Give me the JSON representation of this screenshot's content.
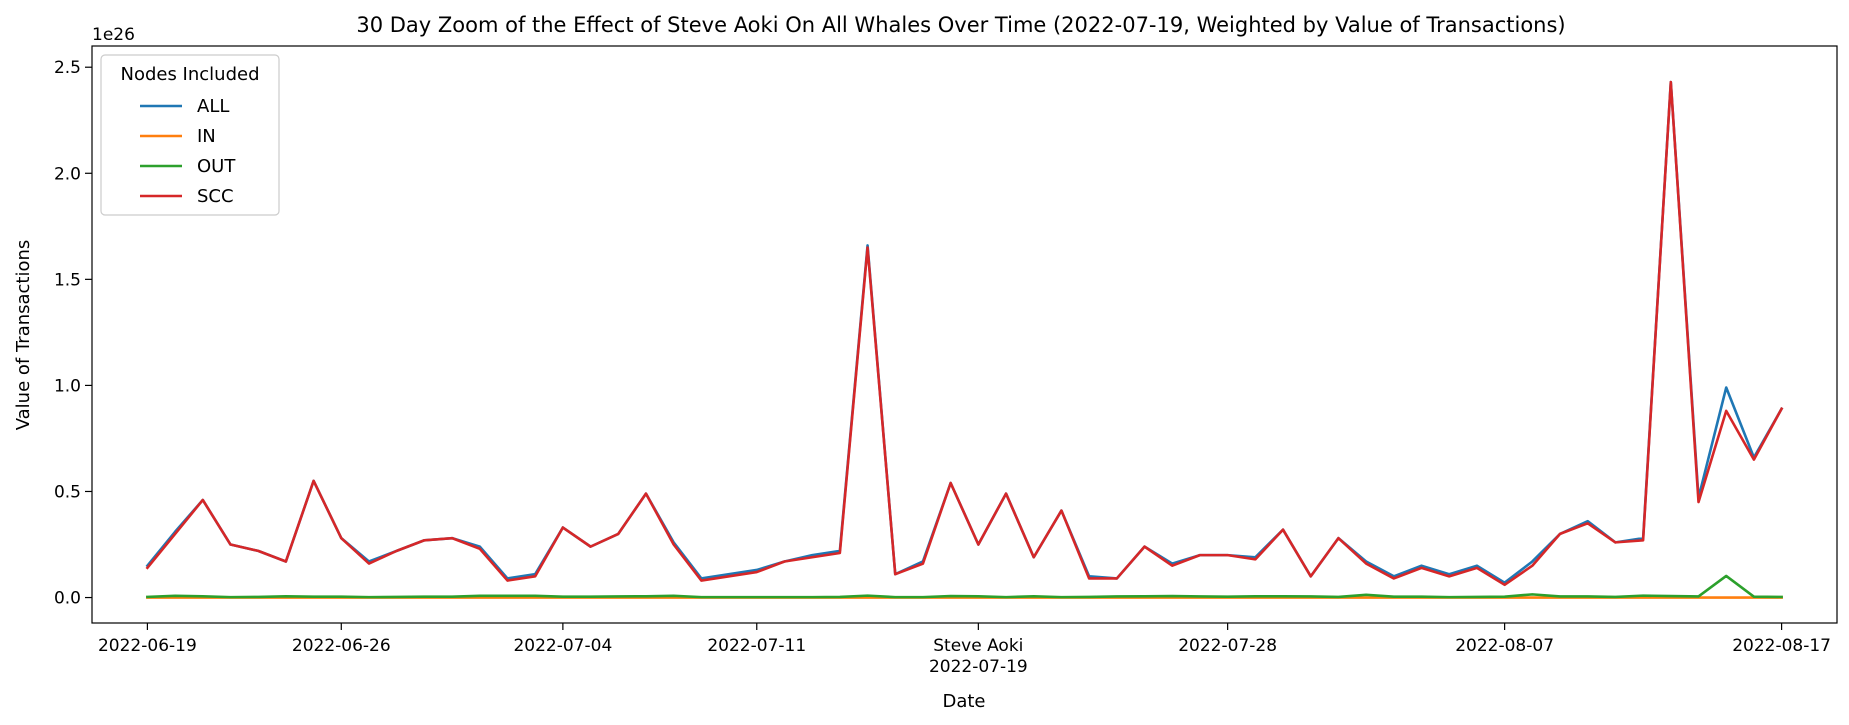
{
  "chart_data": {
    "type": "line",
    "title": "30 Day Zoom of the Effect of Steve Aoki On All Whales Over Time (2022-07-19, Weighted by Value of Transactions)",
    "xlabel": "Date",
    "ylabel": "Value of Transactions",
    "y_multiplier_label": "1e26",
    "ylim": [
      -0.12,
      2.6
    ],
    "xlim": [
      "2022-06-17",
      "2022-08-19"
    ],
    "grid": false,
    "legend": {
      "title": "Nodes Included",
      "placement": "upper-left"
    },
    "x_ticks": [
      {
        "date": "2022-06-19",
        "label": "2022-06-19"
      },
      {
        "date": "2022-06-26",
        "label": "2022-06-26"
      },
      {
        "date": "2022-07-04",
        "label": "2022-07-04"
      },
      {
        "date": "2022-07-11",
        "label": "2022-07-11"
      },
      {
        "date": "2022-07-19",
        "label": "Steve Aoki",
        "label2": "2022-07-19"
      },
      {
        "date": "2022-07-28",
        "label": "2022-07-28"
      },
      {
        "date": "2022-08-07",
        "label": "2022-08-07"
      },
      {
        "date": "2022-08-17",
        "label": "2022-08-17"
      }
    ],
    "y_ticks": [
      0.0,
      0.5,
      1.0,
      1.5,
      2.0,
      2.5
    ],
    "y_tick_labels": [
      "0.0",
      "0.5",
      "1.0",
      "1.5",
      "2.0",
      "2.5"
    ],
    "x": [
      "2022-06-19",
      "2022-06-20",
      "2022-06-21",
      "2022-06-22",
      "2022-06-23",
      "2022-06-24",
      "2022-06-25",
      "2022-06-26",
      "2022-06-27",
      "2022-06-28",
      "2022-06-29",
      "2022-06-30",
      "2022-07-01",
      "2022-07-02",
      "2022-07-03",
      "2022-07-04",
      "2022-07-05",
      "2022-07-06",
      "2022-07-07",
      "2022-07-08",
      "2022-07-09",
      "2022-07-10",
      "2022-07-11",
      "2022-07-12",
      "2022-07-13",
      "2022-07-14",
      "2022-07-15",
      "2022-07-16",
      "2022-07-17",
      "2022-07-18",
      "2022-07-19",
      "2022-07-20",
      "2022-07-21",
      "2022-07-22",
      "2022-07-23",
      "2022-07-24",
      "2022-07-25",
      "2022-07-26",
      "2022-07-27",
      "2022-07-28",
      "2022-07-29",
      "2022-07-30",
      "2022-07-31",
      "2022-08-01",
      "2022-08-02",
      "2022-08-03",
      "2022-08-04",
      "2022-08-05",
      "2022-08-06",
      "2022-08-07",
      "2022-08-08",
      "2022-08-09",
      "2022-08-10",
      "2022-08-11",
      "2022-08-12",
      "2022-08-13",
      "2022-08-14",
      "2022-08-15",
      "2022-08-16",
      "2022-08-17"
    ],
    "series": [
      {
        "name": "ALL",
        "color": "#1f77b4",
        "values": [
          0.15,
          0.31,
          0.46,
          0.25,
          0.22,
          0.17,
          0.55,
          0.28,
          0.17,
          0.22,
          0.27,
          0.28,
          0.24,
          0.09,
          0.11,
          0.33,
          0.24,
          0.3,
          0.49,
          0.26,
          0.09,
          0.11,
          0.13,
          0.17,
          0.2,
          0.22,
          1.66,
          0.11,
          0.17,
          0.54,
          0.25,
          0.49,
          0.19,
          0.41,
          0.1,
          0.09,
          0.24,
          0.16,
          0.2,
          0.2,
          0.19,
          0.32,
          0.1,
          0.28,
          0.17,
          0.1,
          0.15,
          0.11,
          0.15,
          0.07,
          0.17,
          0.3,
          0.36,
          0.26,
          0.28,
          2.43,
          0.47,
          0.99,
          0.66,
          0.89
        ]
      },
      {
        "name": "IN",
        "color": "#ff7f0e",
        "values": [
          0.0,
          0.0,
          0.0,
          0.0,
          0.0,
          0.0,
          0.0,
          0.0,
          0.0,
          0.0,
          0.0,
          0.0,
          0.0,
          0.0,
          0.0,
          0.0,
          0.0,
          0.0,
          0.0,
          0.0,
          0.0,
          0.0,
          0.0,
          0.0,
          0.0,
          0.0,
          0.0,
          0.0,
          0.0,
          0.0,
          0.0,
          0.0,
          0.0,
          0.0,
          0.0,
          0.0,
          0.0,
          0.0,
          0.0,
          0.0,
          0.0,
          0.0,
          0.0,
          0.0,
          0.0,
          0.0,
          0.0,
          0.0,
          0.0,
          0.0,
          0.0,
          0.0,
          0.0,
          0.0,
          0.0,
          0.0,
          0.0,
          0.0,
          0.0,
          0.0
        ]
      },
      {
        "name": "OUT",
        "color": "#2ca02c",
        "values": [
          0.003,
          0.008,
          0.006,
          0.002,
          0.003,
          0.006,
          0.004,
          0.004,
          0.002,
          0.003,
          0.004,
          0.004,
          0.008,
          0.008,
          0.008,
          0.004,
          0.004,
          0.005,
          0.006,
          0.008,
          0.002,
          0.002,
          0.002,
          0.002,
          0.002,
          0.003,
          0.009,
          0.002,
          0.002,
          0.007,
          0.006,
          0.002,
          0.006,
          0.002,
          0.003,
          0.005,
          0.006,
          0.007,
          0.005,
          0.004,
          0.006,
          0.006,
          0.005,
          0.003,
          0.013,
          0.004,
          0.004,
          0.002,
          0.003,
          0.004,
          0.015,
          0.005,
          0.005,
          0.003,
          0.009,
          0.007,
          0.005,
          0.102,
          0.004,
          0.003
        ]
      },
      {
        "name": "SCC",
        "color": "#d62728",
        "values": [
          0.14,
          0.3,
          0.46,
          0.25,
          0.22,
          0.17,
          0.55,
          0.28,
          0.16,
          0.22,
          0.27,
          0.28,
          0.23,
          0.08,
          0.1,
          0.33,
          0.24,
          0.3,
          0.49,
          0.25,
          0.08,
          0.1,
          0.12,
          0.17,
          0.19,
          0.21,
          1.65,
          0.11,
          0.16,
          0.54,
          0.25,
          0.49,
          0.19,
          0.41,
          0.09,
          0.09,
          0.24,
          0.15,
          0.2,
          0.2,
          0.18,
          0.32,
          0.1,
          0.28,
          0.16,
          0.09,
          0.14,
          0.1,
          0.14,
          0.06,
          0.15,
          0.3,
          0.35,
          0.26,
          0.27,
          2.43,
          0.45,
          0.88,
          0.65,
          0.89
        ]
      }
    ]
  }
}
